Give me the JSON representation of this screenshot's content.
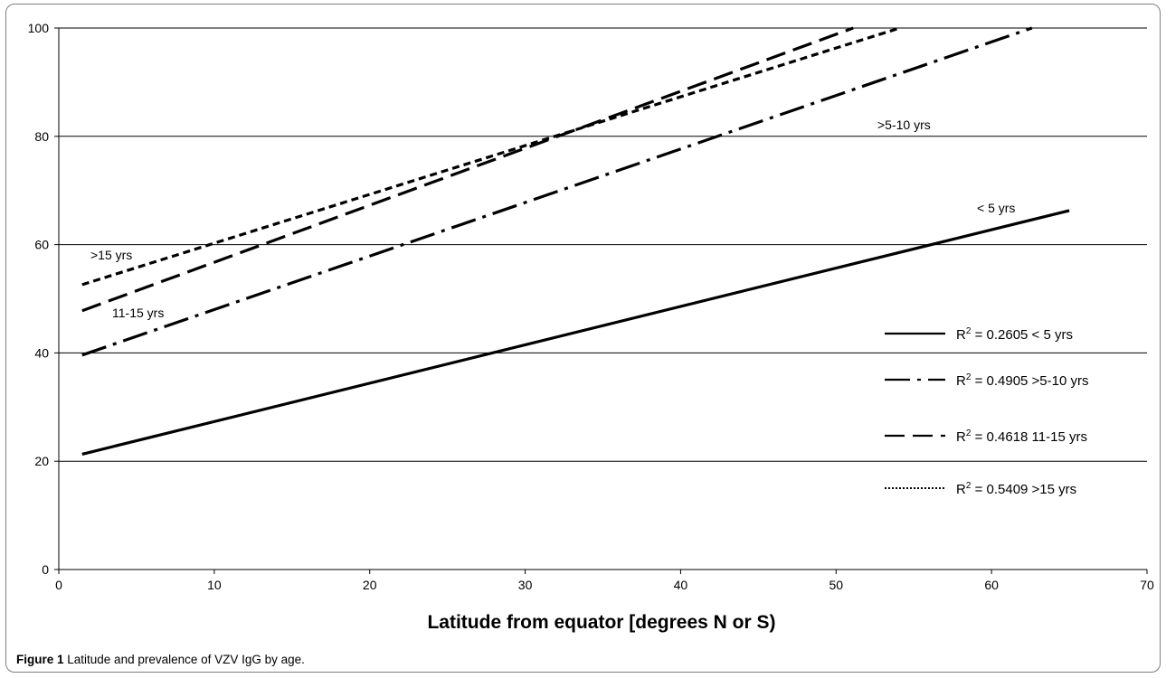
{
  "chart_data": {
    "type": "line",
    "title": "",
    "xlabel": "Latitude from equator [degrees N or S)",
    "ylabel": "",
    "xlim": [
      0,
      70
    ],
    "ylim": [
      0,
      100
    ],
    "xticks": [
      0,
      10,
      20,
      30,
      40,
      50,
      60,
      70
    ],
    "yticks": [
      0,
      20,
      40,
      60,
      80,
      100
    ],
    "grid": "horizontal",
    "legend_position": "right",
    "series": [
      {
        "name": "< 5 yrs",
        "style": "solid",
        "x": [
          1.5,
          65
        ],
        "y": [
          21.3,
          66.3
        ],
        "label": "< 5 yrs"
      },
      {
        "name": ">5-10 yrs",
        "style": "dash-dot",
        "x": [
          1.5,
          62.6
        ],
        "y": [
          39.6,
          100
        ],
        "label": ">5-10 yrs"
      },
      {
        "name": "11-15 yrs",
        "style": "long-dash",
        "x": [
          1.5,
          51.1
        ],
        "y": [
          47.8,
          100
        ],
        "label": "11-15 yrs"
      },
      {
        "name": ">15 yrs",
        "style": "dotted",
        "x": [
          1.5,
          54.1
        ],
        "y": [
          52.6,
          100
        ],
        "label": ">15 yrs"
      }
    ],
    "legend": [
      {
        "r2": "R",
        "sup": "2",
        "text": " = 0.2605 < 5 yrs",
        "style": "solid"
      },
      {
        "r2": "R",
        "sup": "2",
        "text": " = 0.4905 >5-10 yrs",
        "style": "dash-dot"
      },
      {
        "r2": "R",
        "sup": "2",
        "text": " = 0.4618 11-15 yrs",
        "style": "long-dash"
      },
      {
        "r2": "R",
        "sup": "2",
        "text": " = 0.5409 >15 yrs",
        "style": "dotted"
      }
    ]
  },
  "caption": {
    "label": "Figure 1",
    "text": " Latitude and prevalence of VZV IgG by age."
  }
}
